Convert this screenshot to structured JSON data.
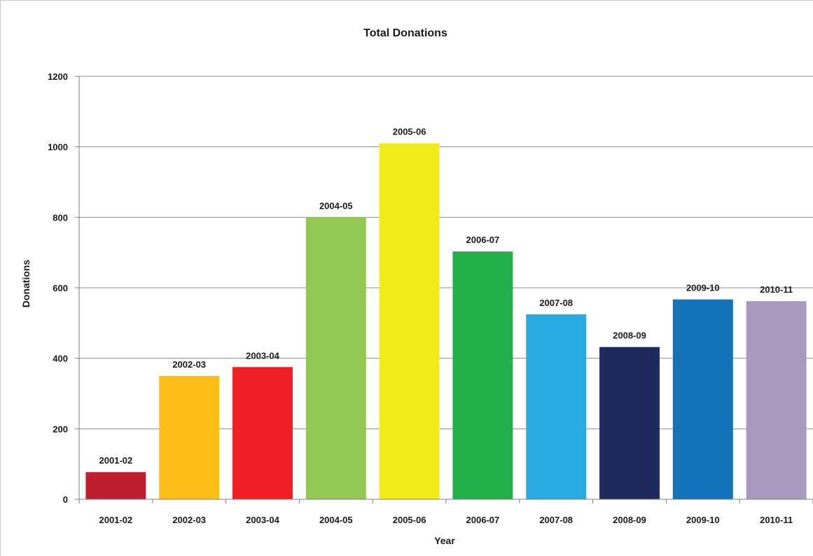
{
  "chart_data": {
    "type": "bar",
    "title": "Total Donations",
    "xlabel": "Year",
    "ylabel": "Donations",
    "ylim": [
      0,
      1200
    ],
    "yticks": [
      0,
      200,
      400,
      600,
      800,
      1000,
      1200
    ],
    "grid": true,
    "legend": "none",
    "categories": [
      "2001-02",
      "2002-03",
      "2003-04",
      "2004-05",
      "2005-06",
      "2006-07",
      "2007-08",
      "2008-09",
      "2009-10",
      "2010-11"
    ],
    "values": [
      77,
      350,
      375,
      800,
      1010,
      703,
      525,
      432,
      567,
      562
    ],
    "data_labels": [
      "2001-02",
      "2002-03",
      "2003-04",
      "2004-05",
      "2005-06",
      "2006-07",
      "2007-08",
      "2008-09",
      "2009-10",
      "2010-11"
    ],
    "colors": [
      "#be1e2d",
      "#fbbf17",
      "#ee1f25",
      "#92c853",
      "#f2eb19",
      "#21b04b",
      "#29abe2",
      "#1f2a5c",
      "#1472b9",
      "#a99abd"
    ]
  }
}
